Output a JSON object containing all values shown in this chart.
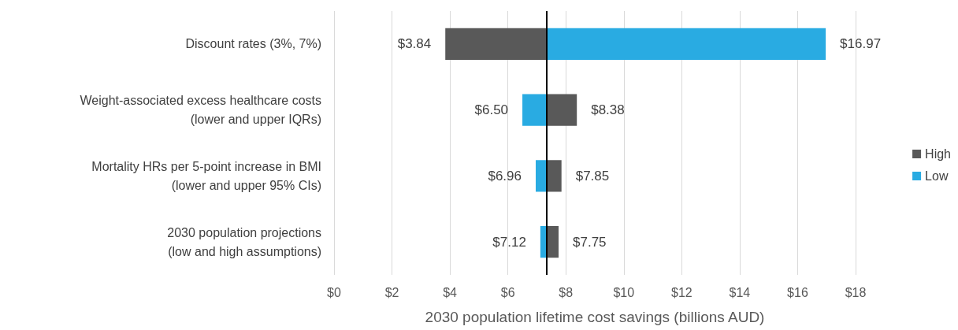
{
  "chart_data": {
    "type": "bar",
    "orientation": "horizontal",
    "xlabel": "2030 population lifetime cost savings (billions AUD)",
    "categories": [
      "Discount rates (3%, 7%)",
      "Weight-associated excess healthcare costs\n(lower and upper IQRs)",
      "Mortality HRs per 5-point increase in BMI\n(lower and upper 95% CIs)",
      "2030 population projections\n(low and high assumptions)"
    ],
    "series": [
      {
        "name": "High",
        "color": "#595959",
        "base": [
          7.34,
          7.34,
          7.34,
          7.34
        ],
        "values": [
          -3.5,
          1.04,
          0.51,
          0.41
        ],
        "value_labels": [
          "$3.84",
          "$8.38",
          "$7.85",
          "$7.75"
        ]
      },
      {
        "name": "Low",
        "color": "#29abe2",
        "base": [
          7.34,
          7.34,
          7.34,
          7.34
        ],
        "values": [
          9.63,
          -0.84,
          -0.38,
          -0.22
        ],
        "value_labels": [
          "$16.97",
          "$6.50",
          "$6.96",
          "$7.12"
        ]
      }
    ],
    "xlim": [
      0,
      18
    ],
    "xticks": [
      {
        "value": 0,
        "label": "$0"
      },
      {
        "value": 2,
        "label": "$2"
      },
      {
        "value": 4,
        "label": "$4"
      },
      {
        "value": 6,
        "label": "$6"
      },
      {
        "value": 8,
        "label": "$8"
      },
      {
        "value": 10,
        "label": "$10"
      },
      {
        "value": 12,
        "label": "$12"
      },
      {
        "value": 14,
        "label": "$14"
      },
      {
        "value": 16,
        "label": "$16"
      },
      {
        "value": 18,
        "label": "$18"
      }
    ],
    "ref_lines": [
      {
        "axis": "x",
        "value": 7.34,
        "color": "#000000"
      }
    ],
    "grid": "x",
    "legend": "right"
  }
}
